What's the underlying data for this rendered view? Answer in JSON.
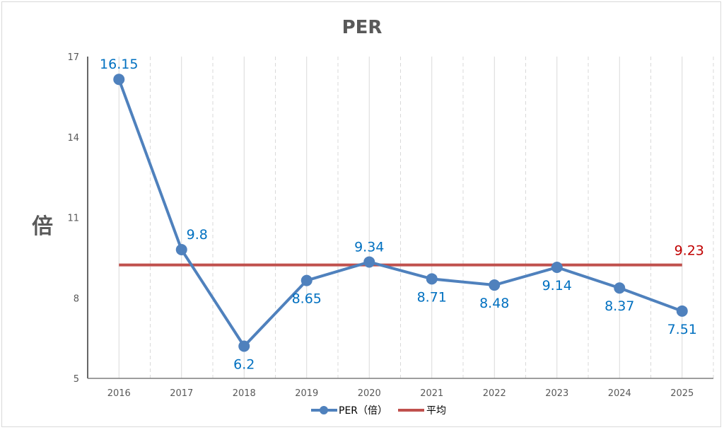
{
  "chart_data": {
    "type": "line",
    "title": "PER",
    "ylabel": "倍",
    "xlabel": "",
    "categories": [
      "2016",
      "2017",
      "2018",
      "2019",
      "2020",
      "2021",
      "2022",
      "2023",
      "2024",
      "2025"
    ],
    "series": [
      {
        "name": "PER（倍）",
        "values": [
          16.15,
          9.8,
          6.2,
          8.65,
          9.34,
          8.71,
          8.48,
          9.14,
          8.37,
          7.51
        ],
        "color": "#4f81bd",
        "label_color": "#0070c0"
      },
      {
        "name": "平均",
        "values": [
          9.23,
          9.23,
          9.23,
          9.23,
          9.23,
          9.23,
          9.23,
          9.23,
          9.23,
          9.23
        ],
        "color": "#c0504d",
        "label": "9.23",
        "label_color": "#c00000"
      }
    ],
    "data_labels": [
      "16.15",
      "9.8",
      "6.2",
      "8.65",
      "9.34",
      "8.71",
      "8.48",
      "9.14",
      "8.37",
      "7.51"
    ],
    "ylim": [
      5,
      17
    ],
    "yticks": [
      5,
      8,
      11,
      14,
      17
    ],
    "ytick_labels": [
      "5",
      "8",
      "11",
      "14",
      "17"
    ],
    "grid": true,
    "legend": "bottom-center"
  }
}
